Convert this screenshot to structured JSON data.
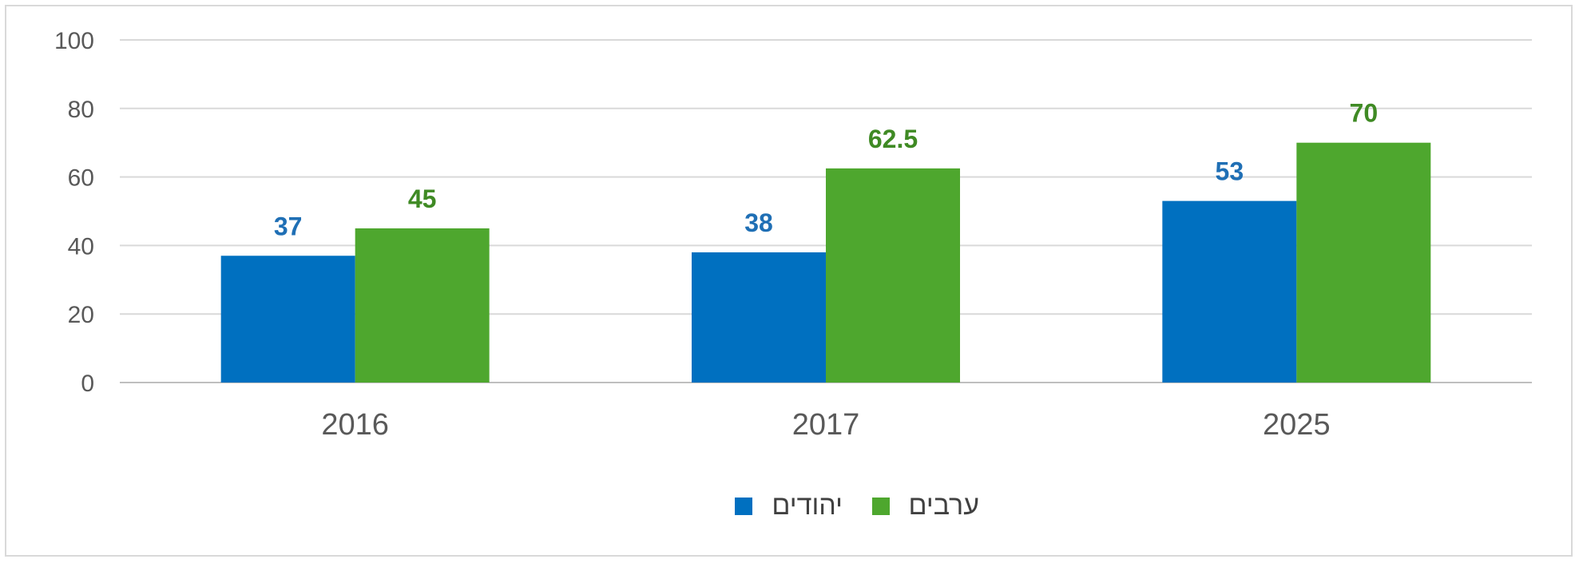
{
  "chart_data": {
    "type": "bar",
    "title": "",
    "xlabel": "",
    "ylabel": "",
    "ylim": [
      0,
      100
    ],
    "yticks": [
      0,
      20,
      40,
      60,
      80,
      100
    ],
    "grid": true,
    "legend_position": "bottom",
    "categories": [
      "2016",
      "2017",
      "2025"
    ],
    "series": [
      {
        "name": "יהודים",
        "color": "#0070c0",
        "values": [
          37,
          38,
          53
        ]
      },
      {
        "name": "ערבים",
        "color": "#4ea72e",
        "values": [
          45,
          62.5,
          70
        ]
      }
    ]
  }
}
